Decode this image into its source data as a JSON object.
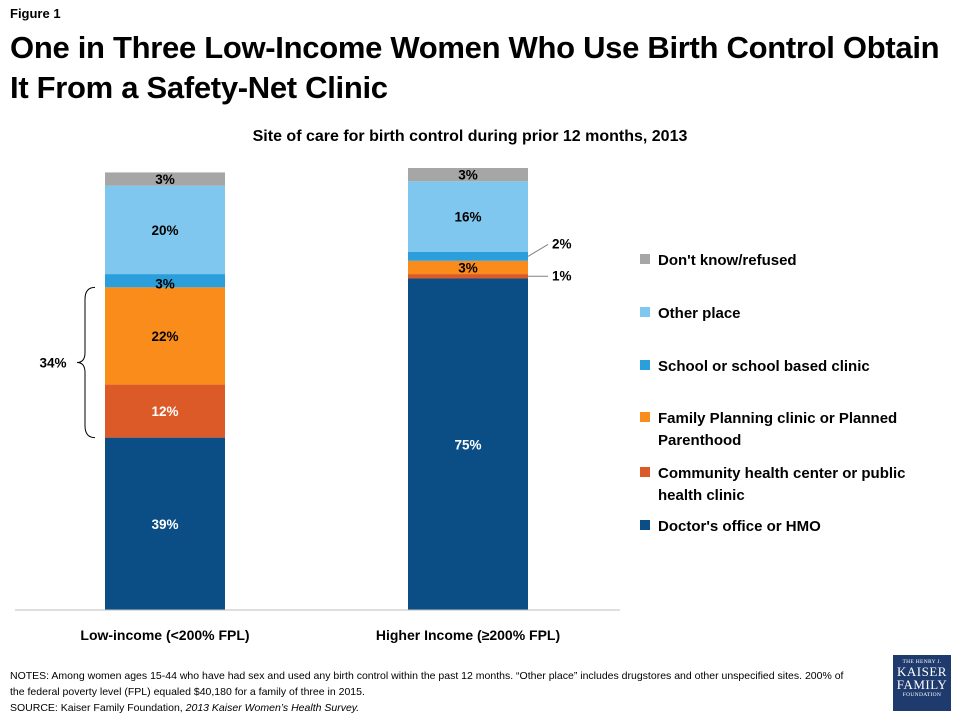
{
  "figure_label": "Figure 1",
  "title": "One in Three Low-Income Women Who Use Birth Control Obtain It From a Safety-Net Clinic",
  "colors": {
    "dont_know": "#a6a6a6",
    "other_place": "#7fc7ee",
    "school": "#2b9fdc",
    "family_planning": "#fa8c1c",
    "community_health": "#dc5a28",
    "doctor": "#0b4e86"
  },
  "chart_data": {
    "type": "bar",
    "stacked": true,
    "title": "Site of care for birth control during prior 12 months, 2013",
    "categories": [
      "Low-income (<200% FPL)",
      "Higher Income (≥200% FPL)"
    ],
    "series": [
      {
        "name": "Doctor's office or HMO",
        "key": "doctor",
        "values": [
          39,
          75
        ],
        "labels": [
          "39%",
          "75%"
        ]
      },
      {
        "name": "Community health center or public health clinic",
        "key": "community_health",
        "values": [
          12,
          1
        ],
        "labels": [
          "12%",
          "1%"
        ]
      },
      {
        "name": "Family Planning clinic or Planned Parenthood",
        "key": "family_planning",
        "values": [
          22,
          3
        ],
        "labels": [
          "22%",
          "3%"
        ]
      },
      {
        "name": "School or school based clinic",
        "key": "school",
        "values": [
          3,
          2
        ],
        "labels": [
          "3%",
          "2%"
        ]
      },
      {
        "name": "Other place",
        "key": "other_place",
        "values": [
          20,
          16
        ],
        "labels": [
          "20%",
          "16%"
        ]
      },
      {
        "name": "Don't know/refused",
        "key": "dont_know",
        "values": [
          3,
          3
        ],
        "labels": [
          "3%",
          "3%"
        ]
      }
    ],
    "ylim": [
      0,
      100
    ],
    "bracket_annotation": {
      "category": 0,
      "label": "34%"
    },
    "legend_order": [
      "dont_know",
      "other_place",
      "school",
      "family_planning",
      "community_health",
      "doctor"
    ],
    "legend_placement": "right"
  },
  "notes": {
    "line1": "NOTES: Among women ages 15-44 who have had sex and used any birth control within the past 12 months. “Other place” includes drugstores and other unspecified sites. 200% of the federal poverty level (FPL) equaled $40,180 for a family of three in 2015.",
    "source_prefix": "SOURCE: Kaiser Family Foundation, ",
    "source_title": "2013 Kaiser Women’s Health Survey."
  },
  "logo": {
    "line1": "THE HENRY J.",
    "line2": "KAISER",
    "line3": "FAMILY",
    "line4": "FOUNDATION"
  }
}
